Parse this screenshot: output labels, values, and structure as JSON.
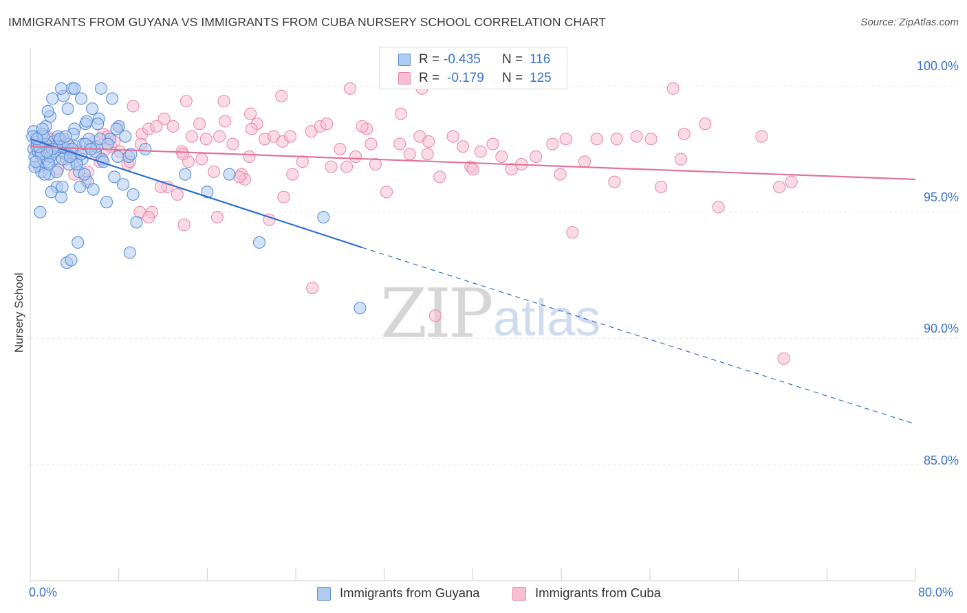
{
  "header": {
    "title": "IMMIGRANTS FROM GUYANA VS IMMIGRANTS FROM CUBA NURSERY SCHOOL CORRELATION CHART",
    "source": "Source: ZipAtlas.com"
  },
  "legend": {
    "r_label": "R =",
    "n_label": "N =",
    "guyana": {
      "r": "-0.435",
      "n": "116"
    },
    "cuba": {
      "r": "-0.179",
      "n": "125"
    }
  },
  "watermark": {
    "zip": "ZIP",
    "atlas": "atlas"
  },
  "colors": {
    "guyana_fill": "#aecbf0",
    "guyana_stroke": "#5b8fd6",
    "guyana_line": "#2d6fd0",
    "cuba_fill": "#f7bfd1",
    "cuba_stroke": "#e98aab",
    "cuba_line": "#e2729b",
    "axis_text": "#3a73c8",
    "grid": "#e6e6e6"
  },
  "chart_data": {
    "type": "scatter",
    "title": "IMMIGRANTS FROM GUYANA VS IMMIGRANTS FROM CUBA NURSERY SCHOOL CORRELATION CHART",
    "xlabel": "",
    "ylabel": "Nursery School",
    "xlim": [
      0,
      80
    ],
    "ylim": [
      80.4,
      101.5
    ],
    "x_tick_labels": [
      "0.0%",
      "80.0%"
    ],
    "y_ticks": [
      100,
      95,
      90,
      85
    ],
    "y_tick_labels": [
      "100.0%",
      "95.0%",
      "90.0%",
      "85.0%"
    ],
    "series": [
      {
        "name": "Immigrants from Guyana",
        "r": -0.435,
        "n": 116,
        "trend": {
          "x0": 0,
          "y0": 97.9,
          "x_solid_end": 30,
          "y_solid_end": 93.6,
          "x1": 80,
          "y1": 86.6
        },
        "points": [
          [
            0.3,
            97.5
          ],
          [
            0.5,
            98.0
          ],
          [
            0.4,
            97.2
          ],
          [
            0.8,
            96.8
          ],
          [
            0.6,
            97.8
          ],
          [
            0.9,
            97.3
          ],
          [
            1.0,
            96.6
          ],
          [
            1.2,
            97.0
          ],
          [
            1.4,
            98.4
          ],
          [
            1.5,
            97.6
          ],
          [
            1.7,
            96.5
          ],
          [
            1.8,
            98.8
          ],
          [
            2.0,
            99.5
          ],
          [
            2.2,
            97.1
          ],
          [
            2.4,
            96.0
          ],
          [
            2.6,
            97.9
          ],
          [
            2.8,
            95.6
          ],
          [
            3.0,
            99.6
          ],
          [
            3.2,
            97.3
          ],
          [
            3.4,
            99.1
          ],
          [
            3.6,
            97.5
          ],
          [
            3.8,
            99.9
          ],
          [
            4.0,
            98.3
          ],
          [
            4.2,
            97.0
          ],
          [
            4.4,
            96.6
          ],
          [
            4.6,
            99.5
          ],
          [
            4.8,
            97.7
          ],
          [
            5.0,
            98.5
          ],
          [
            5.2,
            96.2
          ],
          [
            5.4,
            97.6
          ],
          [
            5.7,
            95.9
          ],
          [
            5.9,
            97.4
          ],
          [
            6.2,
            98.7
          ],
          [
            6.5,
            97.1
          ],
          [
            6.9,
            95.4
          ],
          [
            7.2,
            97.9
          ],
          [
            7.6,
            96.4
          ],
          [
            8.0,
            98.4
          ],
          [
            8.4,
            96.1
          ],
          [
            8.9,
            97.2
          ],
          [
            9.3,
            95.7
          ],
          [
            9.6,
            94.6
          ],
          [
            10.4,
            97.5
          ],
          [
            0.3,
            98.2
          ],
          [
            0.7,
            97.4
          ],
          [
            1.1,
            98.1
          ],
          [
            1.6,
            97.0
          ],
          [
            2.1,
            97.8
          ],
          [
            2.5,
            98.0
          ],
          [
            3.1,
            97.4
          ],
          [
            3.5,
            96.9
          ],
          [
            4.1,
            97.6
          ],
          [
            4.7,
            97.1
          ],
          [
            5.3,
            97.9
          ],
          [
            6.0,
            97.6
          ],
          [
            0.4,
            96.8
          ],
          [
            0.9,
            95.0
          ],
          [
            1.3,
            96.5
          ],
          [
            1.9,
            95.8
          ],
          [
            2.3,
            97.6
          ],
          [
            3.3,
            93.0
          ],
          [
            3.7,
            93.1
          ],
          [
            4.3,
            93.8
          ],
          [
            9.0,
            93.4
          ],
          [
            0.2,
            98.0
          ],
          [
            0.6,
            97.6
          ],
          [
            1.0,
            97.3
          ],
          [
            1.4,
            97.7
          ],
          [
            1.8,
            97.2
          ],
          [
            2.2,
            97.4
          ],
          [
            2.6,
            97.6
          ],
          [
            3.0,
            97.6
          ],
          [
            3.4,
            97.7
          ],
          [
            3.8,
            97.5
          ],
          [
            4.2,
            96.9
          ],
          [
            4.6,
            97.3
          ],
          [
            5.0,
            97.7
          ],
          [
            5.5,
            97.5
          ],
          [
            6.3,
            97.9
          ],
          [
            7.0,
            97.7
          ],
          [
            7.8,
            98.3
          ],
          [
            8.6,
            98.0
          ],
          [
            1.2,
            98.0
          ],
          [
            2.0,
            97.5
          ],
          [
            2.9,
            97.1
          ],
          [
            3.9,
            98.1
          ],
          [
            4.9,
            96.5
          ],
          [
            6.1,
            98.5
          ],
          [
            0.5,
            97.0
          ],
          [
            1.5,
            97.4
          ],
          [
            2.7,
            97.9
          ],
          [
            3.6,
            97.2
          ],
          [
            0.8,
            97.6
          ],
          [
            1.7,
            96.9
          ],
          [
            2.4,
            96.6
          ],
          [
            3.2,
            98.0
          ],
          [
            5.6,
            99.1
          ],
          [
            6.4,
            99.9
          ],
          [
            7.4,
            99.5
          ],
          [
            1.1,
            98.3
          ],
          [
            2.8,
            99.9
          ],
          [
            4.0,
            99.9
          ],
          [
            1.6,
            99.0
          ],
          [
            5.1,
            98.6
          ],
          [
            14.0,
            96.5
          ],
          [
            16.0,
            95.8
          ],
          [
            18.0,
            96.5
          ],
          [
            20.7,
            93.8
          ],
          [
            26.5,
            94.8
          ],
          [
            29.8,
            91.2
          ],
          [
            2.9,
            96.0
          ],
          [
            4.5,
            96.0
          ],
          [
            6.6,
            97.0
          ],
          [
            7.9,
            97.2
          ],
          [
            9.1,
            97.3
          ],
          [
            0.6,
            97.9
          ]
        ]
      },
      {
        "name": "Immigrants from Cuba",
        "r": -0.179,
        "n": 125,
        "trend": {
          "x0": 0,
          "y0": 97.6,
          "x1": 80,
          "y1": 96.3
        },
        "points": [
          [
            1.0,
            97.6
          ],
          [
            1.8,
            97.9
          ],
          [
            2.5,
            96.7
          ],
          [
            3.3,
            97.1
          ],
          [
            4.1,
            97.3
          ],
          [
            5.0,
            96.3
          ],
          [
            5.8,
            97.8
          ],
          [
            6.6,
            98.1
          ],
          [
            7.3,
            97.6
          ],
          [
            8.0,
            98.4
          ],
          [
            8.8,
            96.9
          ],
          [
            9.3,
            99.2
          ],
          [
            10.1,
            98.1
          ],
          [
            11.0,
            95.0
          ],
          [
            12.4,
            96.0
          ],
          [
            12.9,
            98.4
          ],
          [
            13.7,
            97.4
          ],
          [
            14.3,
            97.0
          ],
          [
            15.3,
            98.5
          ],
          [
            15.9,
            97.9
          ],
          [
            16.6,
            96.6
          ],
          [
            17.6,
            98.6
          ],
          [
            18.3,
            97.7
          ],
          [
            19.1,
            96.5
          ],
          [
            19.8,
            97.2
          ],
          [
            20.5,
            98.5
          ],
          [
            21.2,
            97.9
          ],
          [
            22.0,
            98.0
          ],
          [
            22.8,
            97.8
          ],
          [
            23.7,
            96.5
          ],
          [
            24.6,
            97.0
          ],
          [
            25.4,
            98.2
          ],
          [
            26.2,
            98.4
          ],
          [
            27.2,
            96.8
          ],
          [
            28.0,
            97.5
          ],
          [
            28.6,
            96.8
          ],
          [
            29.4,
            97.2
          ],
          [
            30.4,
            98.3
          ],
          [
            31.2,
            96.9
          ],
          [
            32.2,
            95.8
          ],
          [
            33.4,
            97.7
          ],
          [
            34.3,
            97.3
          ],
          [
            35.2,
            98.0
          ],
          [
            36.0,
            97.8
          ],
          [
            37.0,
            96.4
          ],
          [
            38.2,
            98.0
          ],
          [
            39.1,
            97.6
          ],
          [
            39.8,
            96.8
          ],
          [
            40.7,
            97.4
          ],
          [
            41.8,
            97.7
          ],
          [
            42.6,
            97.2
          ],
          [
            43.5,
            96.7
          ],
          [
            44.4,
            96.9
          ],
          [
            45.7,
            97.2
          ],
          [
            47.2,
            97.7
          ],
          [
            48.4,
            97.9
          ],
          [
            49.0,
            94.2
          ],
          [
            50.1,
            97.0
          ],
          [
            51.2,
            97.9
          ],
          [
            52.8,
            96.2
          ],
          [
            53.0,
            97.9
          ],
          [
            54.8,
            98.0
          ],
          [
            56.1,
            97.9
          ],
          [
            57.0,
            96.0
          ],
          [
            58.8,
            97.1
          ],
          [
            59.1,
            98.1
          ],
          [
            61.0,
            98.5
          ],
          [
            62.2,
            95.2
          ],
          [
            66.1,
            98.0
          ],
          [
            67.7,
            96.0
          ],
          [
            68.8,
            96.2
          ],
          [
            19.9,
            98.9
          ],
          [
            22.7,
            99.6
          ],
          [
            17.5,
            99.4
          ],
          [
            14.1,
            99.4
          ],
          [
            12.1,
            98.7
          ],
          [
            10.7,
            98.3
          ],
          [
            9.0,
            97.0
          ],
          [
            7.0,
            98.0
          ],
          [
            6.3,
            97.0
          ],
          [
            5.2,
            96.6
          ],
          [
            4.0,
            96.5
          ],
          [
            3.0,
            97.9
          ],
          [
            2.2,
            97.6
          ],
          [
            1.5,
            98.0
          ],
          [
            0.8,
            97.6
          ],
          [
            9.9,
            95.0
          ],
          [
            10.7,
            94.8
          ],
          [
            11.8,
            96.0
          ],
          [
            13.3,
            95.7
          ],
          [
            13.9,
            94.5
          ],
          [
            16.9,
            94.8
          ],
          [
            19.4,
            96.3
          ],
          [
            21.6,
            94.7
          ],
          [
            22.9,
            95.6
          ],
          [
            25.5,
            92.0
          ],
          [
            30.8,
            97.7
          ],
          [
            35.4,
            99.9
          ],
          [
            36.6,
            90.9
          ],
          [
            47.9,
            96.5
          ],
          [
            58.1,
            99.9
          ],
          [
            68.1,
            89.2
          ],
          [
            33.5,
            98.9
          ],
          [
            28.9,
            99.9
          ],
          [
            23.5,
            98.0
          ],
          [
            20.0,
            98.3
          ],
          [
            18.9,
            96.4
          ],
          [
            17.1,
            98.0
          ],
          [
            15.5,
            97.1
          ],
          [
            14.6,
            98.0
          ],
          [
            13.8,
            97.3
          ],
          [
            11.4,
            98.4
          ],
          [
            10.0,
            97.7
          ],
          [
            8.1,
            97.4
          ],
          [
            7.6,
            97.8
          ],
          [
            6.8,
            97.5
          ],
          [
            5.9,
            97.3
          ],
          [
            4.7,
            97.4
          ],
          [
            3.6,
            97.6
          ],
          [
            2.7,
            97.4
          ],
          [
            1.2,
            97.7
          ],
          [
            26.8,
            98.5
          ],
          [
            30.0,
            98.4
          ],
          [
            35.9,
            97.3
          ],
          [
            40.0,
            96.7
          ]
        ]
      }
    ]
  },
  "axes": {
    "ylabel": "Nursery School",
    "y_tick_labels": [
      "100.0%",
      "95.0%",
      "90.0%",
      "85.0%"
    ],
    "x_left": "0.0%",
    "x_right": "80.0%"
  },
  "bottom_legend": {
    "guyana": "Immigrants from Guyana",
    "cuba": "Immigrants from Cuba"
  }
}
